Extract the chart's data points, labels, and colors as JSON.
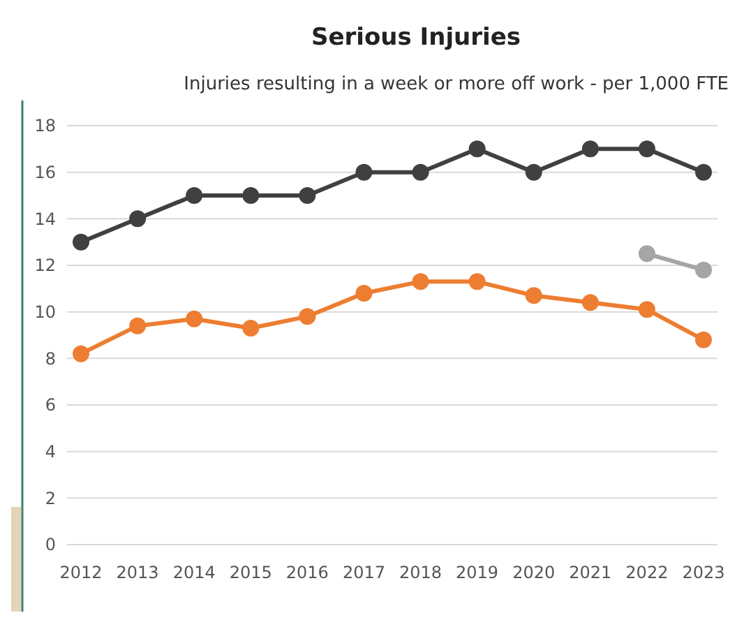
{
  "chart_data": {
    "type": "line",
    "title": "Serious Injuries",
    "subtitle": "Injuries resulting in a week or more off work - per 1,000 FTE",
    "categories": [
      "2012",
      "2013",
      "2014",
      "2015",
      "2016",
      "2017",
      "2018",
      "2019",
      "2020",
      "2021",
      "2022",
      "2023"
    ],
    "series": [
      {
        "color": "#404040",
        "values": [
          13,
          14,
          15,
          15,
          15,
          16,
          16,
          17,
          16,
          17,
          17,
          16
        ]
      },
      {
        "color": "#ed7d31",
        "values": [
          8.2,
          9.4,
          9.7,
          9.3,
          9.8,
          10.8,
          11.3,
          11.3,
          10.7,
          10.4,
          10.1,
          8.8
        ]
      },
      {
        "color": "#a5a5a5",
        "values": [
          null,
          null,
          null,
          null,
          null,
          null,
          null,
          null,
          null,
          null,
          12.5,
          11.8
        ]
      }
    ],
    "ylim": [
      0,
      18
    ],
    "yticks": [
      0,
      2,
      4,
      6,
      8,
      10,
      12,
      14,
      16,
      18
    ],
    "grid": "y",
    "marker": "circle",
    "line_style": "solid"
  }
}
